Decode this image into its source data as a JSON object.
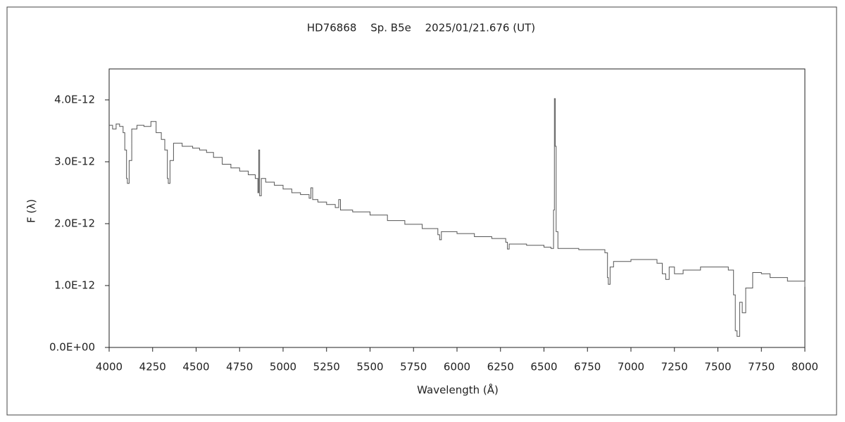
{
  "chart_data": {
    "type": "line",
    "title": "HD76868　 Sp. B5e　 2025/01/21.676 (UT)",
    "xlabel": "Wavelength (Å)",
    "ylabel": "F (λ)",
    "xlim": [
      4000,
      8000
    ],
    "xticks": [
      4000,
      4250,
      4500,
      4750,
      5000,
      5250,
      5500,
      5750,
      6000,
      6250,
      6500,
      6750,
      7000,
      7250,
      7500,
      7750,
      8000
    ],
    "ylim": [
      0,
      4.5e-12
    ],
    "yticks": [
      {
        "value": 0,
        "label": "0.0E+00"
      },
      {
        "value": 1e-12,
        "label": "1.0E-12"
      },
      {
        "value": 2e-12,
        "label": "2.0E-12"
      },
      {
        "value": 3e-12,
        "label": "3.0E-12"
      },
      {
        "value": 4e-12,
        "label": "4.0E-12"
      }
    ],
    "grid": false,
    "series": [
      {
        "name": "F(λ)",
        "color": "#555555",
        "x": [
          4000,
          4020,
          4040,
          4060,
          4080,
          4090,
          4100,
          4105,
          4115,
          4130,
          4160,
          4200,
          4240,
          4270,
          4300,
          4320,
          4335,
          4340,
          4350,
          4370,
          4420,
          4480,
          4520,
          4560,
          4600,
          4650,
          4700,
          4750,
          4800,
          4840,
          4855,
          4860,
          4865,
          4875,
          4900,
          4950,
          5000,
          5050,
          5100,
          5150,
          5160,
          5170,
          5200,
          5250,
          5300,
          5320,
          5330,
          5400,
          5500,
          5600,
          5700,
          5800,
          5890,
          5900,
          5910,
          6000,
          6100,
          6200,
          6280,
          6290,
          6300,
          6400,
          6500,
          6540,
          6555,
          6560,
          6565,
          6570,
          6580,
          6700,
          6850,
          6865,
          6870,
          6880,
          6900,
          7000,
          7150,
          7180,
          7200,
          7220,
          7250,
          7300,
          7400,
          7500,
          7560,
          7590,
          7600,
          7610,
          7625,
          7640,
          7660,
          7700,
          7750,
          7800,
          7900,
          8000
        ],
        "values": [
          3.59e-12,
          3.53e-12,
          3.61e-12,
          3.57e-12,
          3.47e-12,
          3.19e-12,
          2.73e-12,
          2.65e-12,
          3.02e-12,
          3.53e-12,
          3.59e-12,
          3.57e-12,
          3.65e-12,
          3.47e-12,
          3.36e-12,
          3.19e-12,
          2.73e-12,
          2.65e-12,
          3.02e-12,
          3.3e-12,
          3.25e-12,
          3.22e-12,
          3.19e-12,
          3.15e-12,
          3.07e-12,
          2.96e-12,
          2.9e-12,
          2.85e-12,
          2.79e-12,
          2.73e-12,
          2.5e-12,
          3.19e-12,
          2.45e-12,
          2.73e-12,
          2.67e-12,
          2.62e-12,
          2.56e-12,
          2.5e-12,
          2.47e-12,
          2.41e-12,
          2.58e-12,
          2.39e-12,
          2.35e-12,
          2.31e-12,
          2.26e-12,
          2.39e-12,
          2.22e-12,
          2.19e-12,
          2.14e-12,
          2.05e-12,
          1.99e-12,
          1.92e-12,
          1.82e-12,
          1.74e-12,
          1.87e-12,
          1.84e-12,
          1.79e-12,
          1.76e-12,
          1.7e-12,
          1.59e-12,
          1.67e-12,
          1.65e-12,
          1.62e-12,
          1.6e-12,
          2.22e-12,
          4.02e-12,
          3.25e-12,
          1.87e-12,
          1.6e-12,
          1.58e-12,
          1.53e-12,
          1.13e-12,
          1.02e-12,
          1.3e-12,
          1.39e-12,
          1.42e-12,
          1.36e-12,
          1.19e-12,
          1.1e-12,
          1.3e-12,
          1.19e-12,
          1.25e-12,
          1.3e-12,
          1.3e-12,
          1.25e-12,
          8.5e-13,
          2.7e-13,
          1.8e-13,
          7.3e-13,
          5.6e-13,
          9.6e-13,
          1.21e-12,
          1.19e-12,
          1.13e-12,
          1.07e-12,
          9.8e-13
        ]
      }
    ]
  }
}
